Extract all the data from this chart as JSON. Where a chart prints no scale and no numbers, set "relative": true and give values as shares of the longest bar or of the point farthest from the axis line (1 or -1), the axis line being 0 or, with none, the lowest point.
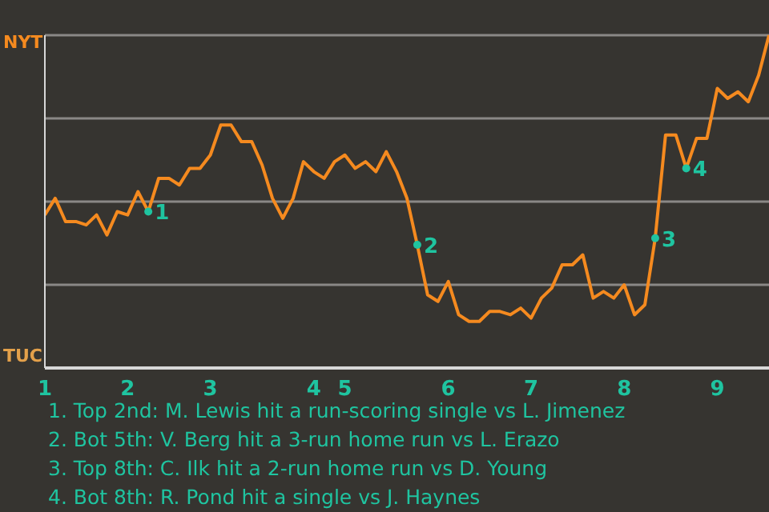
{
  "chart_data": {
    "type": "line",
    "relative": true,
    "categories": [
      "1",
      null,
      null,
      null,
      null,
      null,
      null,
      null,
      "2",
      null,
      null,
      null,
      null,
      null,
      null,
      null,
      "3",
      null,
      null,
      null,
      null,
      null,
      null,
      null,
      null,
      null,
      "4",
      null,
      null,
      "5",
      null,
      null,
      null,
      null,
      null,
      null,
      null,
      null,
      null,
      "6",
      null,
      null,
      null,
      null,
      null,
      null,
      null,
      "7",
      null,
      null,
      null,
      null,
      null,
      null,
      null,
      null,
      "8",
      null,
      null,
      null,
      null,
      null,
      null,
      null,
      null,
      "9",
      null,
      null,
      null,
      null,
      null
    ],
    "series": [
      {
        "color": "#f58a1f",
        "values": [
          0.46,
          0.51,
          0.44,
          0.44,
          0.43,
          0.46,
          0.4,
          0.47,
          0.46,
          0.53,
          0.47,
          0.57,
          0.57,
          0.55,
          0.6,
          0.6,
          0.64,
          0.73,
          0.73,
          0.68,
          0.68,
          0.61,
          0.51,
          0.45,
          0.51,
          0.62,
          0.59,
          0.57,
          0.62,
          0.64,
          0.6,
          0.62,
          0.59,
          0.65,
          0.59,
          0.51,
          0.37,
          0.22,
          0.2,
          0.26,
          0.16,
          0.14,
          0.14,
          0.17,
          0.17,
          0.16,
          0.18,
          0.15,
          0.21,
          0.24,
          0.31,
          0.31,
          0.34,
          0.21,
          0.23,
          0.21,
          0.25,
          0.16,
          0.19,
          0.39,
          0.7,
          0.7,
          0.6,
          0.69,
          0.69,
          0.84,
          0.81,
          0.83,
          0.8,
          0.88,
          1
        ],
        "line_style": "solid"
      },
      {
        "type": "scatter",
        "name": "1",
        "color": "#1fc4a0",
        "marker": "circle",
        "values": [
          null,
          null,
          null,
          null,
          null,
          null,
          null,
          null,
          null,
          null,
          0.47,
          null,
          null,
          null,
          null,
          null,
          null,
          null,
          null,
          null,
          null,
          null,
          null,
          null,
          null,
          null,
          null,
          null,
          null,
          null,
          null,
          null,
          null,
          null,
          null,
          null,
          null,
          null,
          null,
          null,
          null,
          null,
          null,
          null,
          null,
          null,
          null,
          null,
          null,
          null,
          null,
          null,
          null,
          null,
          null,
          null,
          null,
          null,
          null,
          null,
          null,
          null,
          null,
          null,
          null,
          null,
          null,
          null,
          null,
          null,
          null
        ]
      },
      {
        "type": "scatter",
        "name": "2",
        "color": "#1fc4a0",
        "marker": "circle",
        "values": [
          null,
          null,
          null,
          null,
          null,
          null,
          null,
          null,
          null,
          null,
          null,
          null,
          null,
          null,
          null,
          null,
          null,
          null,
          null,
          null,
          null,
          null,
          null,
          null,
          null,
          null,
          null,
          null,
          null,
          null,
          null,
          null,
          null,
          null,
          null,
          null,
          0.37,
          null,
          null,
          null,
          null,
          null,
          null,
          null,
          null,
          null,
          null,
          null,
          null,
          null,
          null,
          null,
          null,
          null,
          null,
          null,
          null,
          null,
          null,
          null,
          null,
          null,
          null,
          null,
          null,
          null,
          null,
          null,
          null,
          null,
          null
        ]
      },
      {
        "type": "scatter",
        "name": "3",
        "color": "#1fc4a0",
        "marker": "circle",
        "values": [
          null,
          null,
          null,
          null,
          null,
          null,
          null,
          null,
          null,
          null,
          null,
          null,
          null,
          null,
          null,
          null,
          null,
          null,
          null,
          null,
          null,
          null,
          null,
          null,
          null,
          null,
          null,
          null,
          null,
          null,
          null,
          null,
          null,
          null,
          null,
          null,
          null,
          null,
          null,
          null,
          null,
          null,
          null,
          null,
          null,
          null,
          null,
          null,
          null,
          null,
          null,
          null,
          null,
          null,
          null,
          null,
          null,
          null,
          null,
          0.39,
          null,
          null,
          null,
          null,
          null,
          null,
          null,
          null,
          null,
          null,
          null
        ]
      },
      {
        "type": "scatter",
        "name": "4",
        "color": "#1fc4a0",
        "marker": "circle",
        "values": [
          null,
          null,
          null,
          null,
          null,
          null,
          null,
          null,
          null,
          null,
          null,
          null,
          null,
          null,
          null,
          null,
          null,
          null,
          null,
          null,
          null,
          null,
          null,
          null,
          null,
          null,
          null,
          null,
          null,
          null,
          null,
          null,
          null,
          null,
          null,
          null,
          null,
          null,
          null,
          null,
          null,
          null,
          null,
          null,
          null,
          null,
          null,
          null,
          null,
          null,
          null,
          null,
          null,
          null,
          null,
          null,
          null,
          null,
          null,
          null,
          null,
          null,
          0.6,
          null,
          null,
          null,
          null,
          null,
          null,
          null,
          null
        ]
      }
    ],
    "grid": "y",
    "legend": false,
    "marker": "none",
    "annotations": [
      "NYT",
      "TUC",
      "1. Top 2nd: M. Lewis hit a run-scoring single vs L. Jimenez",
      "2. Bot 5th: V. Berg hit a 3-run home run vs L. Erazo",
      "3. Top 8th: C. Ilk hit a 2-run home run vs D. Young",
      "4. Bot 8th: R. Pond hit a single vs J. Haynes"
    ]
  }
}
